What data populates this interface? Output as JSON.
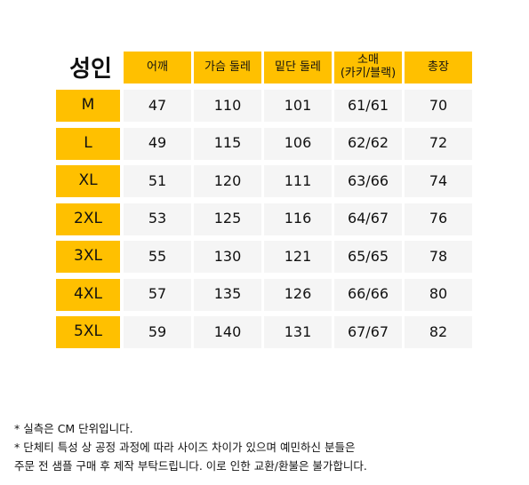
{
  "chart_data": {
    "type": "table",
    "title": "성인",
    "columns": [
      "어깨",
      "가슴 둘레",
      "밑단 둘레",
      "소매\n(카키/블랙)",
      "총장"
    ],
    "rows": [
      {
        "size": "M",
        "values": [
          "47",
          "110",
          "101",
          "61/61",
          "70"
        ]
      },
      {
        "size": "L",
        "values": [
          "49",
          "115",
          "106",
          "62/62",
          "72"
        ]
      },
      {
        "size": "XL",
        "values": [
          "51",
          "120",
          "111",
          "63/66",
          "74"
        ]
      },
      {
        "size": "2XL",
        "values": [
          "53",
          "125",
          "116",
          "64/67",
          "76"
        ]
      },
      {
        "size": "3XL",
        "values": [
          "55",
          "130",
          "121",
          "65/65",
          "78"
        ]
      },
      {
        "size": "4XL",
        "values": [
          "57",
          "135",
          "126",
          "66/66",
          "80"
        ]
      },
      {
        "size": "5XL",
        "values": [
          "59",
          "140",
          "131",
          "67/67",
          "82"
        ]
      }
    ]
  },
  "notes": [
    "* 실측은 CM 단위입니다.",
    "* 단체티 특성 상 공정 과정에 따라 사이즈 차이가 있으며 예민하신 분들은",
    "주문 전 샘플 구매 후 제작 부탁드립니다. 이로 인한 교환/환불은 불가합니다."
  ],
  "colors": {
    "accent": "#ffc000",
    "cell_bg": "#f5f5f5"
  }
}
